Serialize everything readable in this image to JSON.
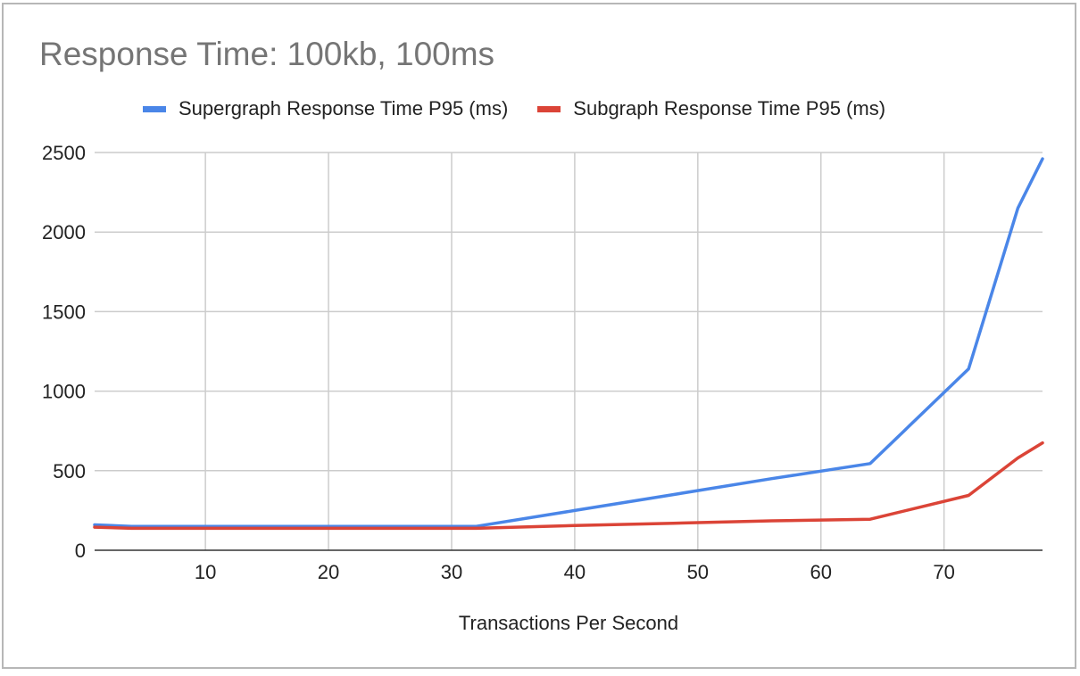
{
  "chart_data": {
    "type": "line",
    "title": "Response Time: 100kb, 100ms",
    "xlabel": "Transactions Per Second",
    "ylabel": "",
    "xlim": [
      1,
      78
    ],
    "ylim": [
      0,
      2500
    ],
    "x_ticks": [
      10,
      20,
      30,
      40,
      50,
      60,
      70
    ],
    "y_ticks": [
      0,
      500,
      1000,
      1500,
      2000,
      2500
    ],
    "grid": true,
    "legend_position": "top",
    "series": [
      {
        "name": "Supergraph Response Time P95 (ms)",
        "color": "#4a86e8",
        "x": [
          1,
          4,
          8,
          16,
          24,
          32,
          40,
          48,
          56,
          64,
          72,
          76,
          78
        ],
        "y": [
          160,
          150,
          150,
          150,
          150,
          150,
          250,
          350,
          450,
          545,
          1140,
          2150,
          2460
        ]
      },
      {
        "name": "Subgraph Response Time P95 (ms)",
        "color": "#db4437",
        "x": [
          1,
          4,
          8,
          16,
          24,
          32,
          40,
          48,
          56,
          64,
          72,
          76,
          78
        ],
        "y": [
          145,
          138,
          138,
          138,
          138,
          138,
          155,
          170,
          185,
          195,
          345,
          580,
          675
        ]
      }
    ]
  }
}
